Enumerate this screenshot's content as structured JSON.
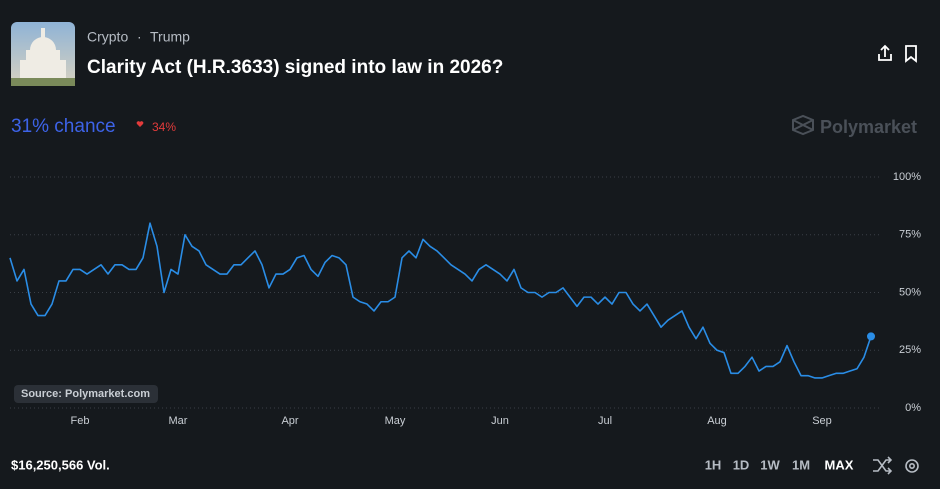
{
  "header": {
    "breadcrumb": [
      "Crypto",
      "Trump"
    ],
    "title": "Clarity Act (H.R.3633) signed into law in 2026?",
    "chance": "31% chance",
    "change": "34%",
    "brand": "Polymarket"
  },
  "source": "Source: Polymarket.com",
  "footer": {
    "volume": "$16,250,566 Vol.",
    "ranges": [
      "1H",
      "1D",
      "1W",
      "1M",
      "MAX"
    ]
  },
  "chart_data": {
    "type": "line",
    "color": "#2a8de6",
    "categories": [
      null,
      null,
      null,
      null,
      null,
      null,
      null,
      null,
      null,
      null,
      "Feb",
      null,
      null,
      null,
      null,
      null,
      null,
      null,
      null,
      null,
      null,
      null,
      null,
      null,
      "Mar",
      null,
      null,
      null,
      null,
      null,
      null,
      null,
      null,
      null,
      null,
      null,
      null,
      null,
      null,
      null,
      "Apr",
      null,
      null,
      null,
      null,
      null,
      null,
      null,
      null,
      null,
      null,
      null,
      null,
      null,
      null,
      "May",
      null,
      null,
      null,
      null,
      null,
      null,
      null,
      null,
      null,
      null,
      null,
      null,
      null,
      null,
      "Jun",
      null,
      null,
      null,
      null,
      null,
      null,
      null,
      null,
      null,
      null,
      null,
      null,
      null,
      null,
      "Jul",
      null,
      null,
      null,
      null,
      null,
      null,
      null,
      null,
      null,
      null,
      null,
      null,
      null,
      null,
      null,
      "Aug",
      null,
      null,
      null,
      null,
      null,
      null,
      null,
      null,
      null,
      null,
      null,
      null,
      null,
      null,
      "Sep",
      null,
      null,
      null,
      null,
      null,
      null,
      null
    ],
    "values": [
      65,
      55,
      60,
      45,
      40,
      40,
      45,
      55,
      55,
      60,
      60,
      58,
      60,
      62,
      58,
      62,
      62,
      60,
      60,
      65,
      80,
      70,
      50,
      60,
      58,
      75,
      70,
      68,
      62,
      60,
      58,
      58,
      62,
      62,
      65,
      68,
      62,
      52,
      58,
      58,
      60,
      65,
      66,
      60,
      57,
      63,
      66,
      65,
      62,
      48,
      46,
      45,
      42,
      46,
      46,
      48,
      65,
      68,
      65,
      73,
      70,
      68,
      65,
      62,
      60,
      58,
      55,
      60,
      62,
      60,
      58,
      55,
      60,
      52,
      50,
      50,
      48,
      50,
      50,
      52,
      48,
      44,
      48,
      48,
      45,
      48,
      45,
      50,
      50,
      45,
      42,
      45,
      40,
      35,
      38,
      40,
      42,
      35,
      30,
      35,
      28,
      25,
      24,
      15,
      15,
      18,
      22,
      16,
      18,
      18,
      20,
      27,
      20,
      14,
      14,
      13,
      13,
      14,
      15,
      15,
      16,
      17,
      22,
      31
    ],
    "ylim": [
      0,
      100
    ],
    "yticks": [
      {
        "value": 0,
        "label": "0%"
      },
      {
        "value": 25,
        "label": "25%"
      },
      {
        "value": 50,
        "label": "50%"
      },
      {
        "value": 75,
        "label": "75%"
      },
      {
        "value": 100,
        "label": "100%"
      }
    ],
    "grid": true
  }
}
